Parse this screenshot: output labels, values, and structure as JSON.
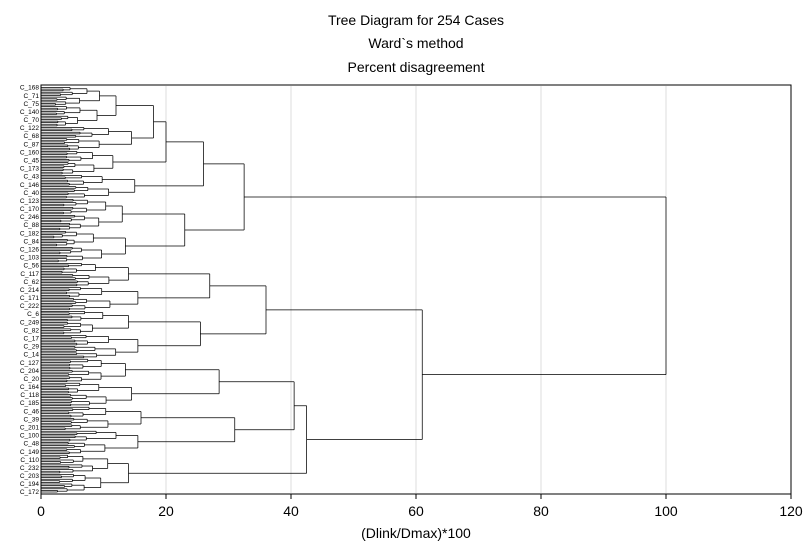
{
  "chart_data": {
    "type": "dendrogram",
    "title": [
      "Tree Diagram for 254 Cases",
      "Ward`s method",
      "Percent disagreement"
    ],
    "xlabel": "(Dlink/Dmax)*100",
    "xlim": [
      0,
      120
    ],
    "xticks": [
      0,
      20,
      40,
      60,
      80,
      100,
      120
    ],
    "grid": true,
    "case_count": 254,
    "leaf_labels": [
      "C_168",
      "C_71",
      "C_75",
      "C_140",
      "C_70",
      "C_122",
      "C_68",
      "C_87",
      "C_160",
      "C_45",
      "C_173",
      "C_43",
      "C_146",
      "C_40",
      "C_123",
      "C_170",
      "C_246",
      "C_88",
      "C_182",
      "C_84",
      "C_126",
      "C_103",
      "C_56",
      "C_117",
      "C_62",
      "C_214",
      "C_171",
      "C_222",
      "C_6",
      "C_249",
      "C_82",
      "C_17",
      "C_29",
      "C_14",
      "C_127",
      "C_204",
      "C_20",
      "C_164",
      "C_118",
      "C_185",
      "C_46",
      "C_39",
      "C_201",
      "C_100",
      "C_48",
      "C_149",
      "C_110",
      "C_232",
      "C_203",
      "C_194",
      "C_172"
    ],
    "merges": [
      {
        "group": 1,
        "height": 18
      },
      {
        "group": 2,
        "height": 20
      },
      {
        "group": 3,
        "height": 26
      },
      {
        "group": 4,
        "height": 23
      },
      {
        "group": 5,
        "height": 32.5
      },
      {
        "group": 6,
        "height": 27
      },
      {
        "group": 7,
        "height": 25.5
      },
      {
        "group": 8,
        "height": 36
      },
      {
        "group": 9,
        "height": 28.5
      },
      {
        "group": 10,
        "height": 31
      },
      {
        "group": 11,
        "height": 40.5
      },
      {
        "group": 12,
        "height": 42.5
      },
      {
        "group": 13,
        "height": 61
      },
      {
        "group": 14,
        "height": 100
      }
    ]
  }
}
